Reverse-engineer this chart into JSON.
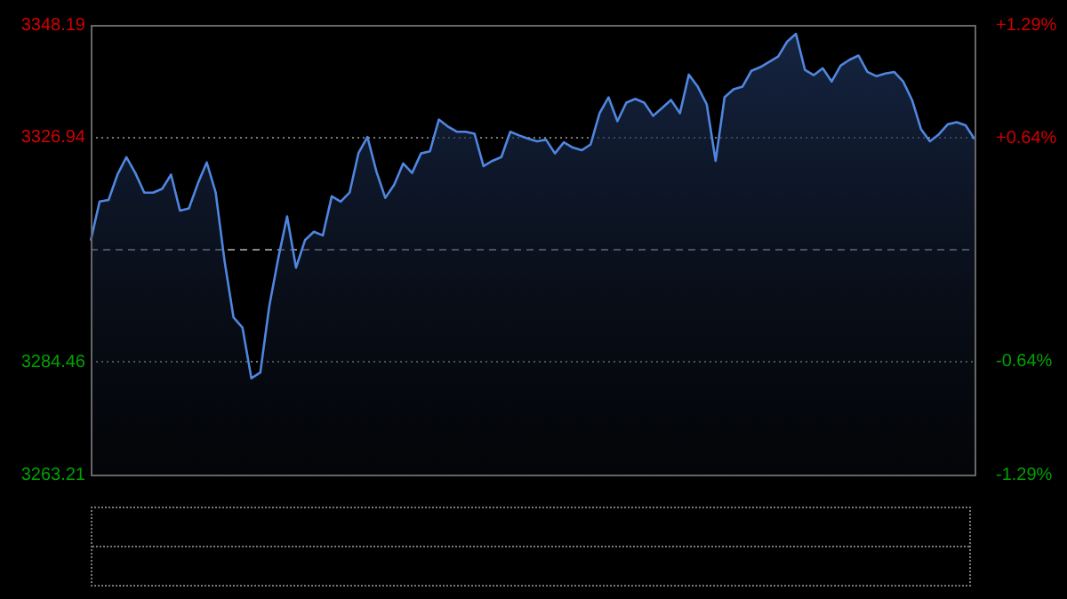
{
  "chart_data": {
    "type": "area",
    "categories": [
      null,
      null,
      null,
      null,
      null,
      null,
      null,
      null,
      null,
      null,
      null,
      null,
      null,
      null,
      null,
      null,
      null,
      null,
      null,
      null,
      null,
      null,
      null,
      null,
      null,
      null,
      null,
      null,
      null,
      null,
      null,
      null,
      null,
      null,
      null,
      null,
      null,
      null,
      null,
      null,
      null,
      null,
      null,
      null,
      null,
      null,
      null,
      null,
      null,
      null,
      null,
      null,
      null,
      null,
      null,
      null,
      null,
      null,
      null,
      null,
      null,
      null,
      null,
      null,
      null,
      null,
      null,
      null,
      null,
      null,
      null,
      null,
      null,
      null,
      null,
      null,
      null,
      null,
      null,
      null,
      null,
      null,
      null,
      null,
      null,
      null,
      null,
      null,
      null,
      null,
      null,
      null,
      null,
      null,
      null,
      null,
      null,
      null,
      null,
      null
    ],
    "series": [
      {
        "color": "#4f86e0",
        "values": [
          3307.4,
          3314.8,
          3315.1,
          3319.9,
          3323.2,
          3320.2,
          3316.5,
          3316.5,
          3317.2,
          3319.9,
          3313.1,
          3313.5,
          3318.2,
          3322.2,
          3316.5,
          3303.5,
          3292.9,
          3291.0,
          3281.4,
          3282.5,
          3295.0,
          3304.0,
          3312.0,
          3302.3,
          3307.5,
          3309.1,
          3308.4,
          3315.8,
          3314.8,
          3316.5,
          3324.0,
          3327.0,
          3320.5,
          3315.5,
          3318.0,
          3322.0,
          3320.2,
          3323.9,
          3324.3,
          3330.3,
          3329.0,
          3328.0,
          3328.0,
          3327.6,
          3321.5,
          3322.5,
          3323.2,
          3328.0,
          3327.3,
          3326.7,
          3326.2,
          3326.5,
          3323.9,
          3326.0,
          3325.0,
          3324.5,
          3325.6,
          3331.5,
          3334.5,
          3330.0,
          3333.5,
          3334.2,
          3333.5,
          3331.0,
          3332.5,
          3334.0,
          3331.5,
          3338.8,
          3336.5,
          3333.2,
          3322.5,
          3334.5,
          3336.0,
          3336.5,
          3339.5,
          3340.2,
          3341.2,
          3342.2,
          3345.0,
          3346.5,
          3339.7,
          3338.7,
          3340.0,
          3337.5,
          3340.5,
          3341.6,
          3342.4,
          3339.3,
          3338.5,
          3339.0,
          3339.3,
          3337.5,
          3334.0,
          3328.5,
          3326.2,
          3327.5,
          3329.4,
          3329.8,
          3329.2,
          3326.6
        ]
      }
    ],
    "ylim": [
      3263.21,
      3348.19
    ],
    "yticks": [
      3263.21,
      3284.46,
      3326.94,
      3348.19
    ],
    "y2lim": [
      -1.29,
      1.29
    ],
    "y2ticks": [
      {
        "value": -1.29,
        "label": "-1.29%"
      },
      {
        "value": -0.64,
        "label": "-0.64%"
      },
      {
        "value": 0.64,
        "label": "+0.64%"
      },
      {
        "value": 1.29,
        "label": "+1.29%"
      }
    ],
    "ref_lines": [
      {
        "axis": "y",
        "value": 3305.7,
        "line_style": "dashed"
      }
    ],
    "grid": "y",
    "legend": false,
    "marker": "none"
  }
}
